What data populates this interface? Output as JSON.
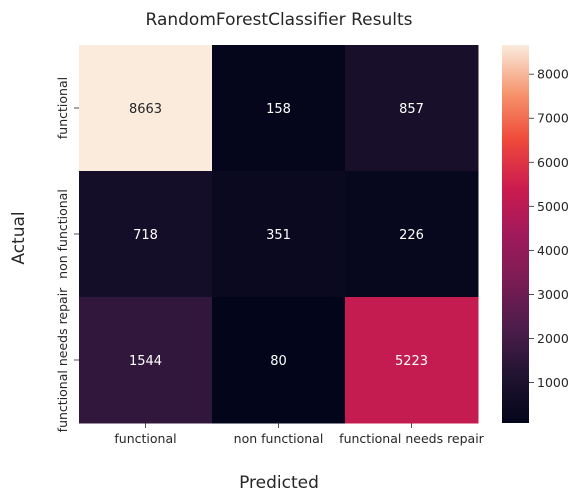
{
  "chart_data": {
    "type": "heatmap",
    "title": "RandomForestClassifier Results",
    "xlabel": "Predicted",
    "ylabel": "Actual",
    "x_categories": [
      "functional",
      "non functional",
      "functional needs repair"
    ],
    "y_categories": [
      "functional",
      "non functional",
      "functional needs repair"
    ],
    "values": [
      [
        8663,
        158,
        857
      ],
      [
        718,
        351,
        226
      ],
      [
        1544,
        80,
        5223
      ]
    ],
    "colorbar": {
      "ticks": [
        "1000",
        "2000",
        "3000",
        "4000",
        "5000",
        "6000",
        "7000",
        "8000"
      ],
      "range": [
        80,
        8663
      ],
      "colormap": "rocket"
    }
  }
}
